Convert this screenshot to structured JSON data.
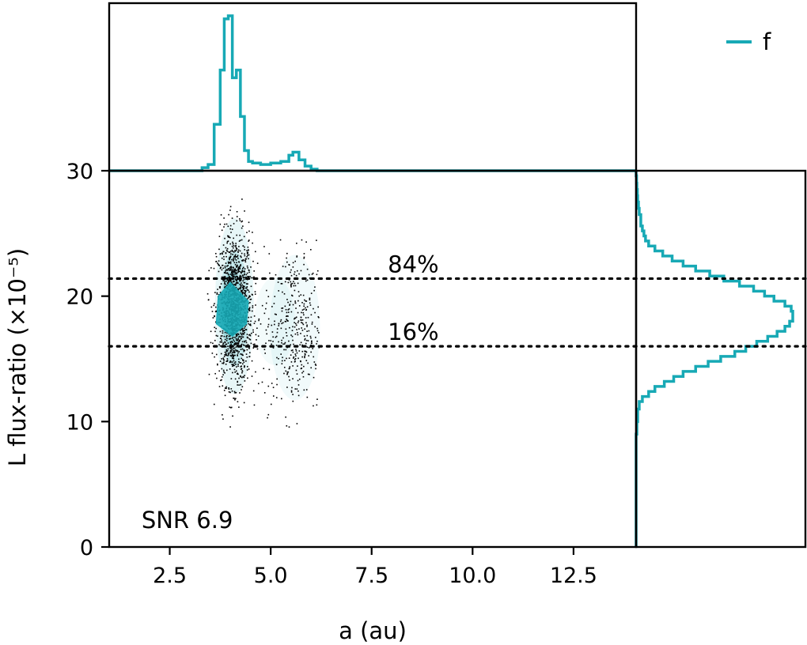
{
  "colors": {
    "accent": "#17a9b5",
    "scatter": "#000000",
    "frame": "#000000",
    "background": "#ffffff"
  },
  "chart_data": {
    "type": "scatter",
    "title": "",
    "xlabel": "a (au)",
    "ylabel": "L flux-ratio (×10⁻⁵)",
    "xlim": [
      1.0,
      14.05
    ],
    "ylim": [
      0,
      30
    ],
    "xticks": [
      {
        "value": 2.5,
        "label": "2.5"
      },
      {
        "value": 5.0,
        "label": "5.0"
      },
      {
        "value": 7.5,
        "label": "7.5"
      },
      {
        "value": 10.0,
        "label": "10.0"
      },
      {
        "value": 12.5,
        "label": "12.5"
      }
    ],
    "yticks": [
      {
        "value": 0,
        "label": "0"
      },
      {
        "value": 10,
        "label": "10"
      },
      {
        "value": 20,
        "label": "20"
      },
      {
        "value": 30,
        "label": "30"
      }
    ],
    "hlines": [
      {
        "value": 21.4,
        "label": "84%",
        "style": "dotted",
        "label_x": 7.9
      },
      {
        "value": 16.0,
        "label": "16%",
        "style": "dotted",
        "label_x": 7.9
      }
    ],
    "annotation": {
      "text": "SNR 6.9",
      "x": 1.8,
      "y": 1.5
    },
    "legend": {
      "label": "f",
      "position": "top-right"
    },
    "scatter": {
      "clusters": [
        {
          "name": "main",
          "center_x": 4.1,
          "center_y": 19.0,
          "sd_x": 0.22,
          "sd_y": 3.0,
          "count": 1400
        },
        {
          "name": "secondary",
          "center_x": 5.6,
          "center_y": 17.5,
          "sd_x": 0.4,
          "sd_y": 3.3,
          "count": 420
        }
      ],
      "core": [
        {
          "x": 3.7,
          "y": 20.0
        },
        {
          "x": 4.0,
          "y": 21.1
        },
        {
          "x": 4.45,
          "y": 19.6
        },
        {
          "x": 4.4,
          "y": 17.8
        },
        {
          "x": 4.05,
          "y": 16.8
        },
        {
          "x": 3.65,
          "y": 17.8
        }
      ]
    },
    "top_histogram": {
      "name": "a marginal",
      "bin_edges": [
        3.3,
        3.45,
        3.6,
        3.75,
        3.85,
        3.95,
        4.05,
        4.15,
        4.25,
        4.35,
        4.45,
        4.55,
        4.75,
        5.0,
        5.25,
        5.45,
        5.55,
        5.7,
        5.85,
        6.0,
        6.15
      ],
      "density": [
        0.02,
        0.04,
        0.3,
        0.65,
        0.98,
        1.0,
        0.6,
        0.65,
        0.35,
        0.13,
        0.06,
        0.05,
        0.04,
        0.05,
        0.06,
        0.1,
        0.12,
        0.07,
        0.03,
        0.01
      ]
    },
    "right_histogram": {
      "name": "flux-ratio marginal",
      "bin_edges": [
        9.0,
        10.0,
        11.0,
        11.6,
        12.0,
        12.4,
        12.8,
        13.2,
        13.6,
        14.0,
        14.4,
        14.8,
        15.2,
        15.6,
        16.0,
        16.4,
        16.8,
        17.2,
        17.6,
        18.0,
        18.4,
        18.8,
        19.2,
        19.6,
        20.0,
        20.4,
        20.8,
        21.2,
        21.6,
        22.0,
        22.4,
        22.8,
        23.2,
        23.6,
        24.0,
        24.4,
        24.8,
        25.2,
        25.6,
        26.0,
        26.5,
        27.0,
        27.5,
        28.0,
        28.5,
        29.0,
        29.6
      ],
      "density": [
        0.005,
        0.01,
        0.02,
        0.04,
        0.08,
        0.12,
        0.18,
        0.24,
        0.3,
        0.38,
        0.46,
        0.54,
        0.63,
        0.7,
        0.77,
        0.84,
        0.9,
        0.95,
        0.98,
        1.0,
        1.0,
        0.99,
        0.95,
        0.88,
        0.82,
        0.75,
        0.66,
        0.56,
        0.47,
        0.38,
        0.3,
        0.23,
        0.17,
        0.12,
        0.08,
        0.06,
        0.05,
        0.04,
        0.03,
        0.03,
        0.02,
        0.015,
        0.01,
        0.008,
        0.005,
        0.003
      ]
    }
  }
}
